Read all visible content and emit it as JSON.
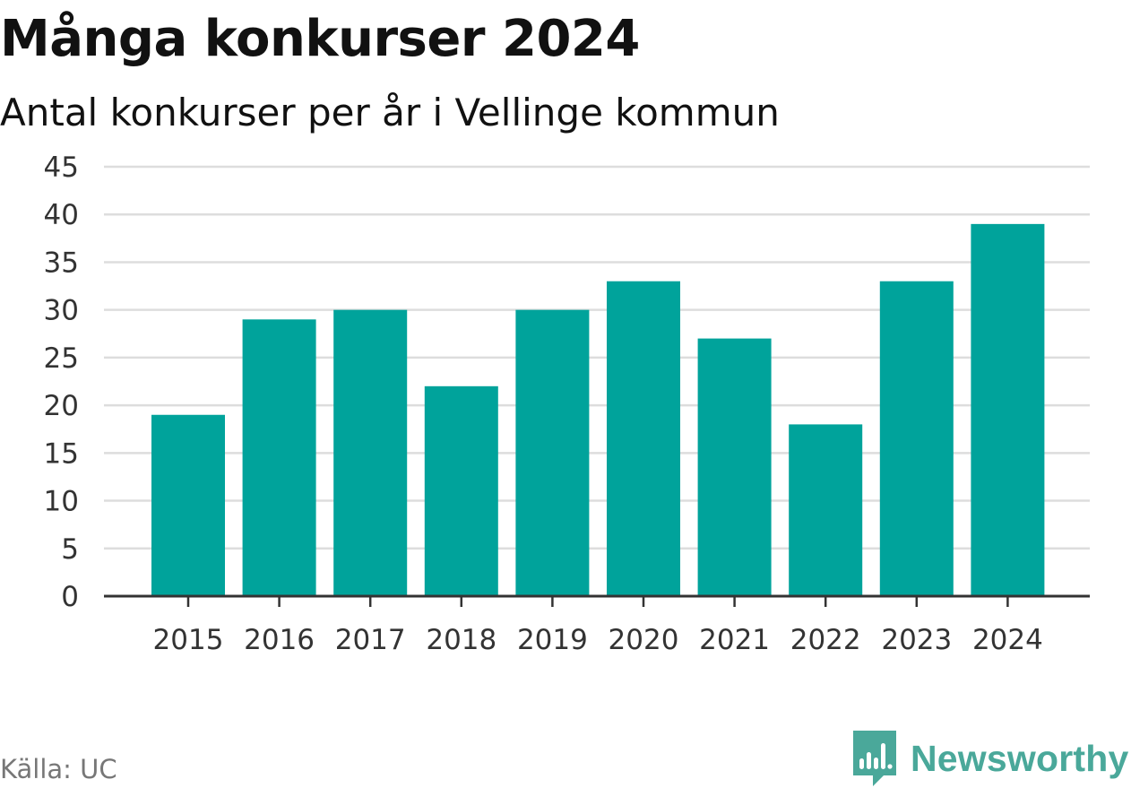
{
  "header": {
    "title": "Många konkurser 2024",
    "subtitle": "Antal konkurser per år i Vellinge kommun"
  },
  "footer": {
    "source": "Källa: UC",
    "brand": "Newsworthy"
  },
  "colors": {
    "bar": "#00a39b",
    "grid": "#dddddd",
    "axis": "#333333",
    "brand": "#4aa89a"
  },
  "chart_data": {
    "type": "bar",
    "title": "Många konkurser 2024",
    "subtitle": "Antal konkurser per år i Vellinge kommun",
    "categories": [
      "2015",
      "2016",
      "2017",
      "2018",
      "2019",
      "2020",
      "2021",
      "2022",
      "2023",
      "2024"
    ],
    "values": [
      19,
      29,
      30,
      22,
      30,
      33,
      27,
      18,
      33,
      39
    ],
    "ylim": [
      0,
      45
    ],
    "yticks": [
      0,
      5,
      10,
      15,
      20,
      25,
      30,
      35,
      40,
      45
    ],
    "xlabel": "",
    "ylabel": "",
    "grid": true,
    "legend": "none"
  }
}
